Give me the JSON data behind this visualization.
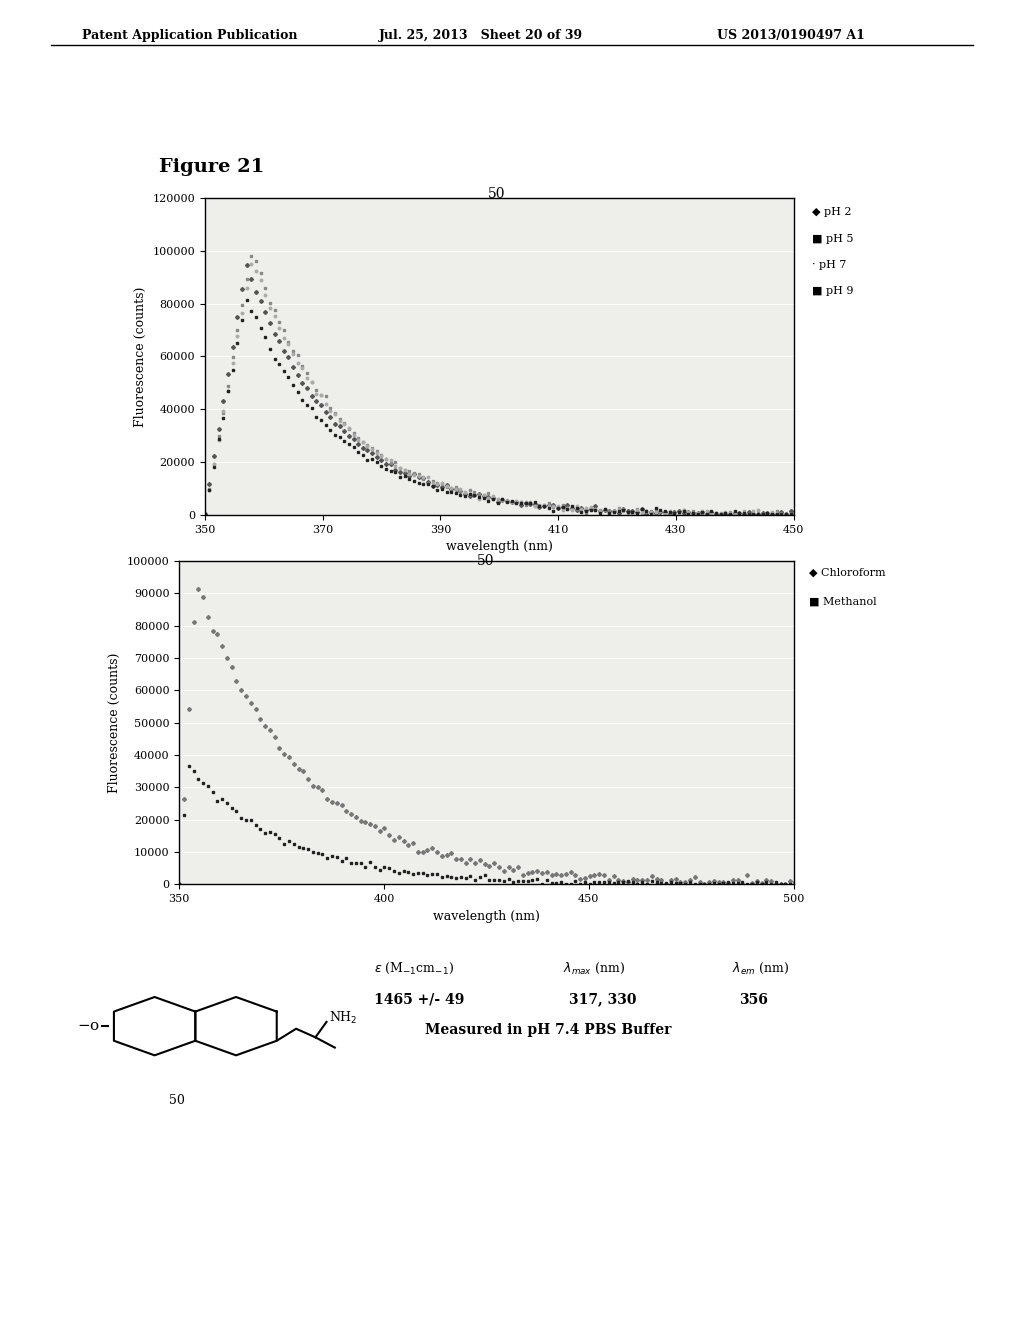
{
  "header_left": "Patent Application Publication",
  "header_mid": "Jul. 25, 2013   Sheet 20 of 39",
  "header_right": "US 2013/0190497 A1",
  "figure_title": "Figure 21",
  "chart1": {
    "title": "50",
    "xlabel": "wavelength (nm)",
    "ylabel": "Fluorescence (counts)",
    "xmin": 350,
    "xmax": 450,
    "xticks": [
      350,
      370,
      390,
      410,
      430,
      450
    ],
    "ymin": 0,
    "ymax": 120000,
    "yticks": [
      0,
      20000,
      40000,
      60000,
      80000,
      100000,
      120000
    ],
    "legend": [
      "ph2",
      "ph5",
      "ph7",
      "ph9"
    ]
  },
  "chart2": {
    "title": "50",
    "xlabel": "wavelength (nm)",
    "ylabel": "Fluorescence (counts)",
    "xmin": 350,
    "xmax": 500,
    "xticks": [
      350,
      400,
      450,
      500
    ],
    "ymin": 0,
    "ymax": 100000,
    "yticks": [
      0,
      10000,
      20000,
      30000,
      40000,
      50000,
      60000,
      70000,
      80000,
      90000,
      100000
    ],
    "legend": [
      "Chloroform",
      "Methanol"
    ]
  },
  "table": {
    "epsilon_val": "1465 +/- 49",
    "lambda_max_val": "317, 330",
    "lambda_em_val": "356",
    "note": "Measured in pH 7.4 PBS Buffer",
    "compound": "50"
  },
  "bg_color": "#ffffff",
  "plot_bg": "#eeeeea"
}
